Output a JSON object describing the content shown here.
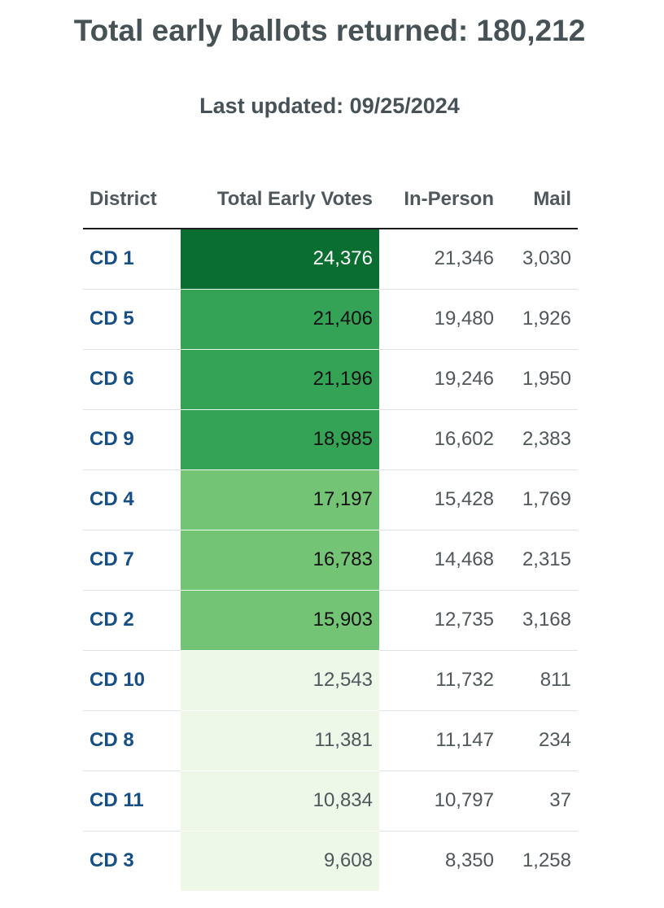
{
  "header": {
    "title": "Total early ballots returned: 180,212",
    "last_updated": "Last updated: 09/25/2024"
  },
  "table": {
    "columns": [
      "District",
      "Total Early Votes",
      "In-Person",
      "Mail"
    ],
    "rows": [
      {
        "district": "CD 1",
        "total": "24,376",
        "in_person": "21,346",
        "mail": "3,030",
        "shade": "#0a6e30",
        "text_color": "#ffffff"
      },
      {
        "district": "CD 5",
        "total": "21,406",
        "in_person": "19,480",
        "mail": "1,926",
        "shade": "#35a356",
        "text_color": "#111111"
      },
      {
        "district": "CD 6",
        "total": "21,196",
        "in_person": "19,246",
        "mail": "1,950",
        "shade": "#35a356",
        "text_color": "#111111"
      },
      {
        "district": "CD 9",
        "total": "18,985",
        "in_person": "16,602",
        "mail": "2,383",
        "shade": "#35a356",
        "text_color": "#111111"
      },
      {
        "district": "CD 4",
        "total": "17,197",
        "in_person": "15,428",
        "mail": "1,769",
        "shade": "#74c476",
        "text_color": "#111111"
      },
      {
        "district": "CD 7",
        "total": "16,783",
        "in_person": "14,468",
        "mail": "2,315",
        "shade": "#74c476",
        "text_color": "#111111"
      },
      {
        "district": "CD 2",
        "total": "15,903",
        "in_person": "12,735",
        "mail": "3,168",
        "shade": "#74c476",
        "text_color": "#111111"
      },
      {
        "district": "CD 10",
        "total": "12,543",
        "in_person": "11,732",
        "mail": "811",
        "shade": "#edf8e9",
        "text_color": "#50575b"
      },
      {
        "district": "CD 8",
        "total": "11,381",
        "in_person": "11,147",
        "mail": "234",
        "shade": "#edf8e9",
        "text_color": "#50575b"
      },
      {
        "district": "CD 11",
        "total": "10,834",
        "in_person": "10,797",
        "mail": "37",
        "shade": "#edf8e9",
        "text_color": "#50575b"
      },
      {
        "district": "CD 3",
        "total": "9,608",
        "in_person": "8,350",
        "mail": "1,258",
        "shade": "#edf8e9",
        "text_color": "#50575b"
      }
    ]
  }
}
